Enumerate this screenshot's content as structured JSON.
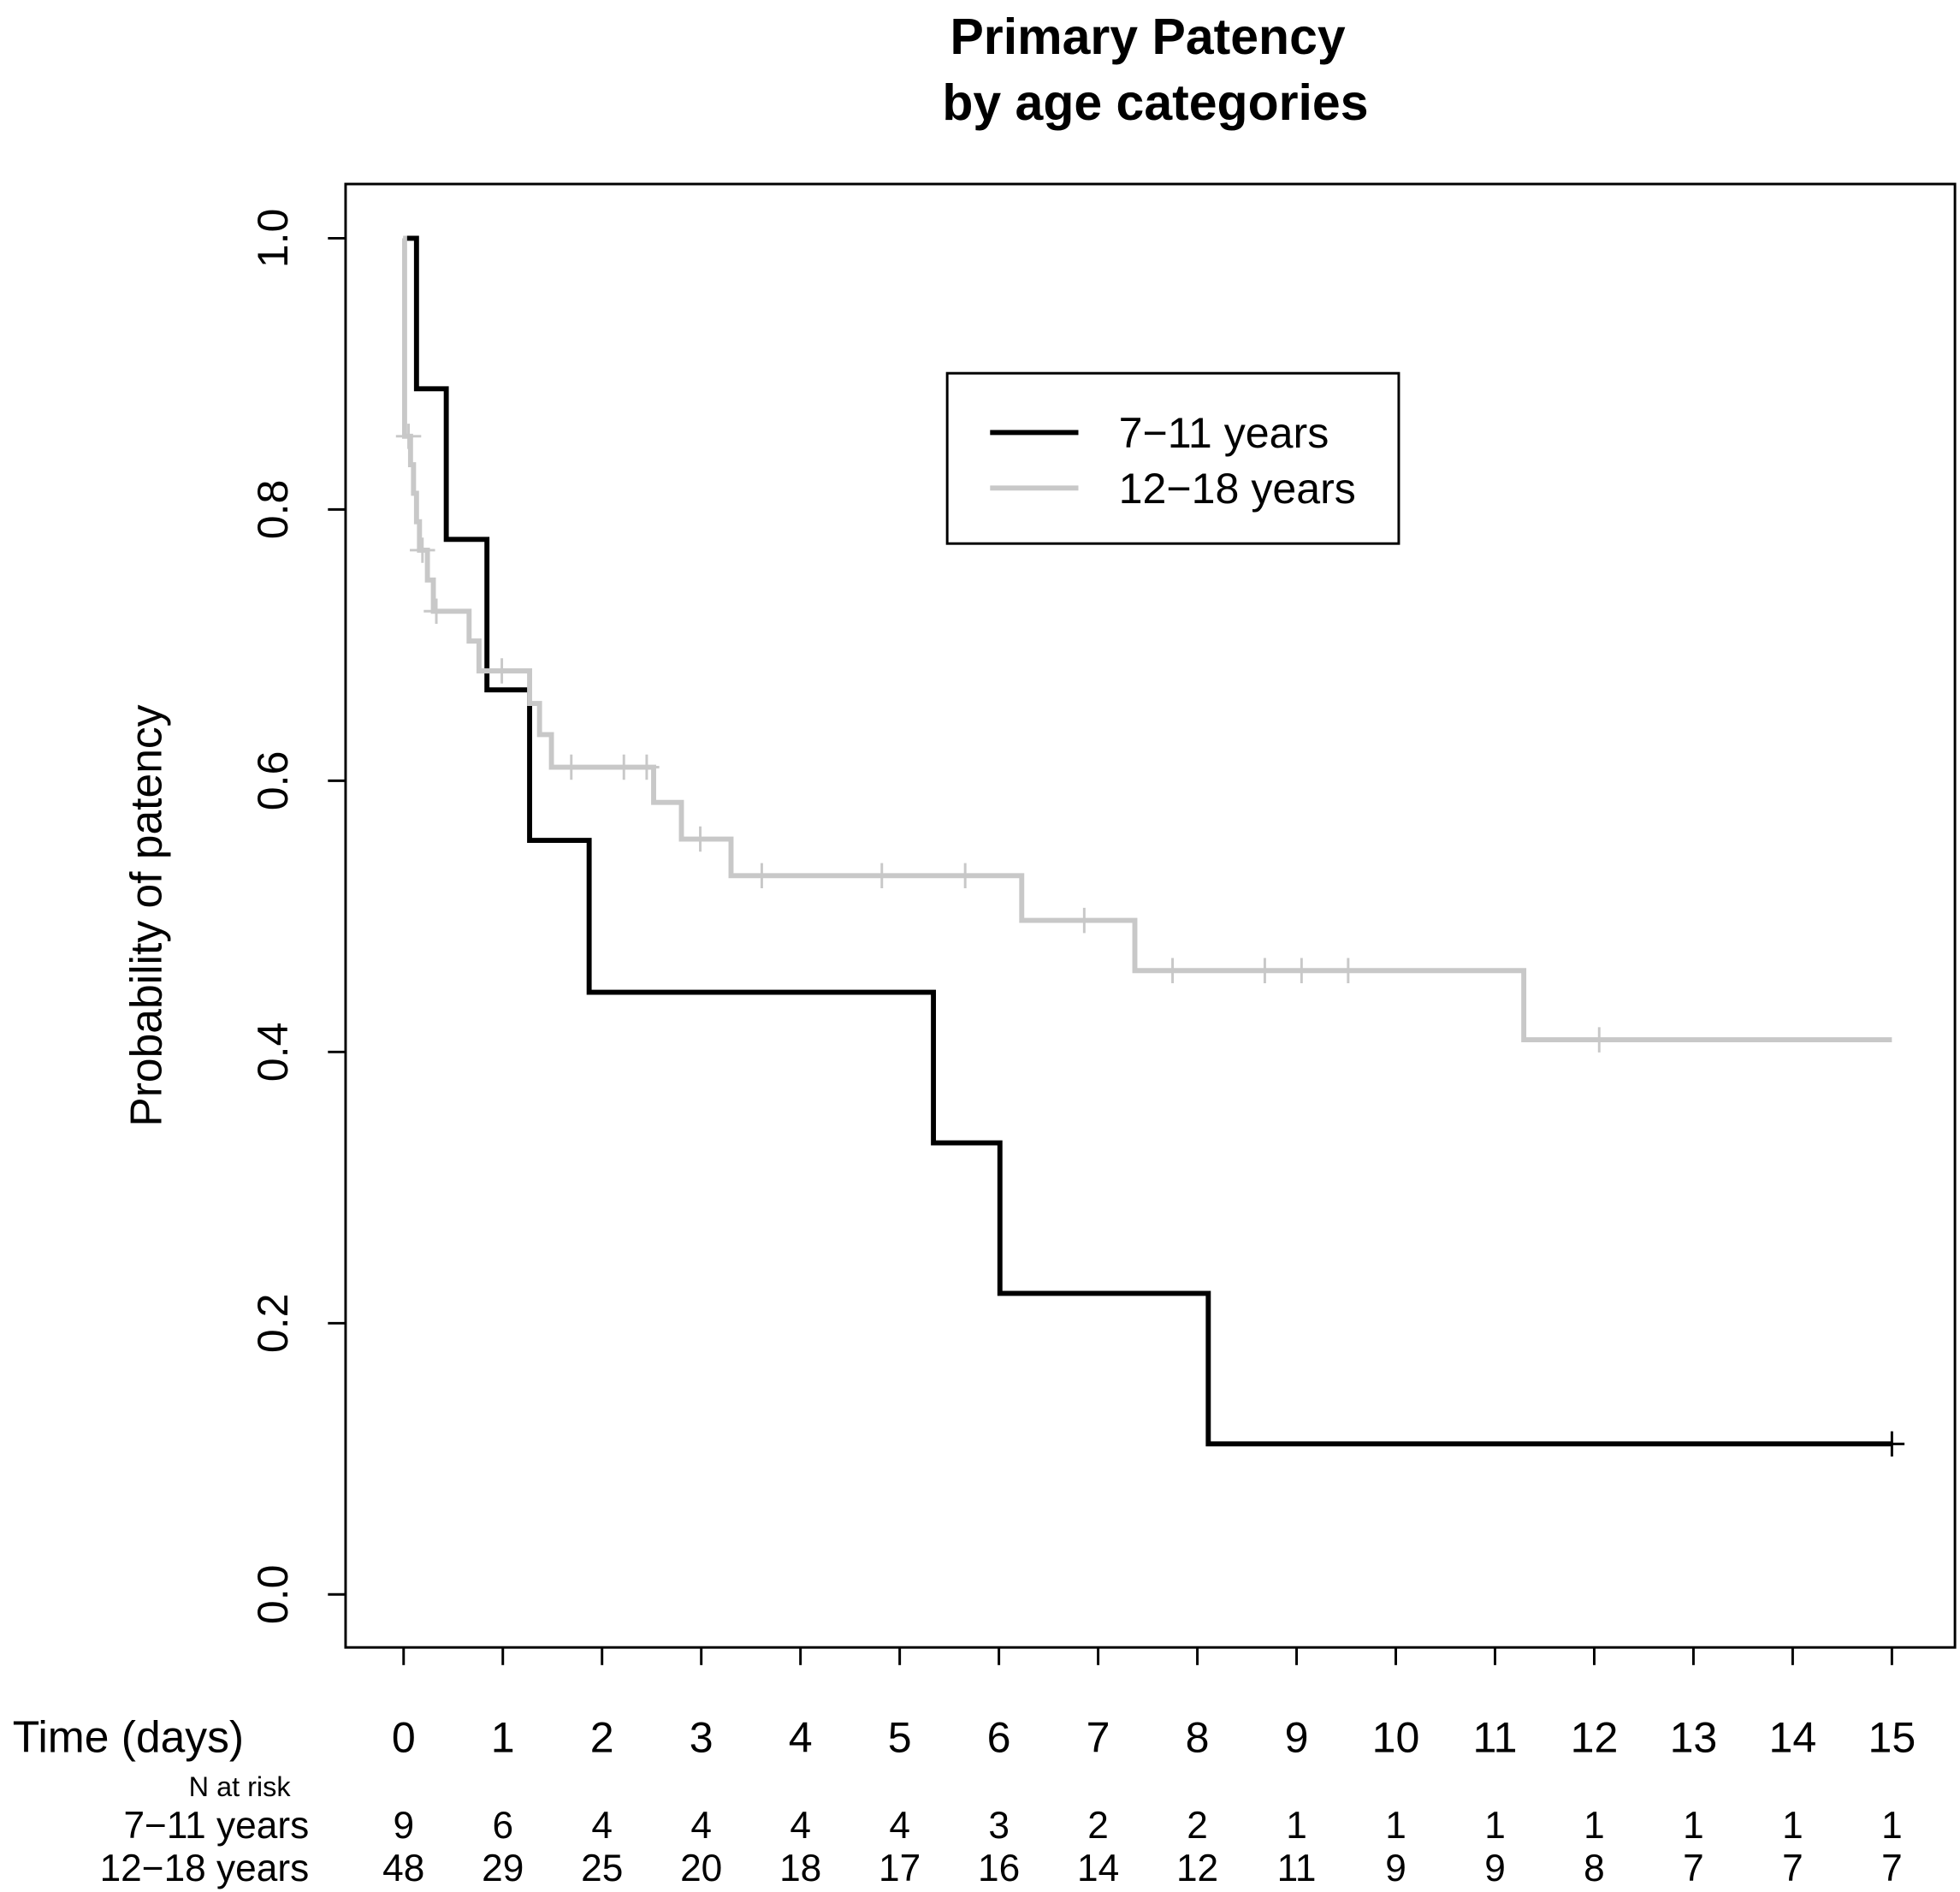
{
  "chart_data": {
    "type": "line",
    "title": "Primary Patency",
    "subtitle": "by age categories",
    "xlabel": "Time (days)",
    "ylabel": "Probability of patency",
    "xlim": [
      0,
      15
    ],
    "ylim": [
      0,
      1
    ],
    "x_ticks": [
      0,
      1,
      2,
      3,
      4,
      5,
      6,
      7,
      8,
      9,
      10,
      11,
      12,
      13,
      14,
      15
    ],
    "y_ticks": [
      0,
      0.2,
      0.4,
      0.6,
      0.8,
      1.0
    ],
    "y_tick_labels": [
      "0.0",
      "0.2",
      "0.4",
      "0.6",
      "0.8",
      "1.0"
    ],
    "legend_position": "top-right",
    "series": [
      {
        "name": "7−11 years",
        "color": "#000000",
        "steps": [
          [
            0,
            1.0
          ],
          [
            0.13,
            0.889
          ],
          [
            0.43,
            0.778
          ],
          [
            0.84,
            0.667
          ],
          [
            1.27,
            0.556
          ],
          [
            1.87,
            0.444
          ],
          [
            5.34,
            0.333
          ],
          [
            6.01,
            0.222
          ],
          [
            8.11,
            0.111
          ]
        ],
        "end": 15,
        "censored": [
          [
            15,
            0.111
          ]
        ]
      },
      {
        "name": "12−18 years",
        "color": "#c8c8c8",
        "steps": [
          [
            0,
            1.0
          ],
          [
            0.01,
            0.854
          ],
          [
            0.07,
            0.833
          ],
          [
            0.1,
            0.812
          ],
          [
            0.13,
            0.791
          ],
          [
            0.16,
            0.77
          ],
          [
            0.24,
            0.748
          ],
          [
            0.3,
            0.725
          ],
          [
            0.66,
            0.703
          ],
          [
            0.76,
            0.681
          ],
          [
            1.27,
            0.657
          ],
          [
            1.37,
            0.634
          ],
          [
            1.49,
            0.61
          ],
          [
            2.52,
            0.584
          ],
          [
            2.8,
            0.557
          ],
          [
            3.3,
            0.53
          ],
          [
            6.23,
            0.497
          ],
          [
            7.37,
            0.46
          ],
          [
            11.29,
            0.409
          ]
        ],
        "end": 15,
        "censored": [
          [
            0.05,
            0.854
          ],
          [
            0.19,
            0.77
          ],
          [
            0.33,
            0.725
          ],
          [
            0.99,
            0.681
          ],
          [
            1.69,
            0.61
          ],
          [
            2.22,
            0.61
          ],
          [
            2.45,
            0.61
          ],
          [
            2.99,
            0.557
          ],
          [
            3.61,
            0.53
          ],
          [
            4.82,
            0.53
          ],
          [
            5.66,
            0.53
          ],
          [
            6.86,
            0.497
          ],
          [
            7.75,
            0.46
          ],
          [
            8.68,
            0.46
          ],
          [
            9.05,
            0.46
          ],
          [
            9.52,
            0.46
          ],
          [
            12.05,
            0.409
          ]
        ]
      }
    ],
    "risk_table": {
      "title": "N at risk",
      "rows": [
        {
          "label": "7−11 years",
          "values": [
            9,
            6,
            4,
            4,
            4,
            4,
            3,
            2,
            2,
            1,
            1,
            1,
            1,
            1,
            1,
            1
          ]
        },
        {
          "label": "12−18 years",
          "values": [
            48,
            29,
            25,
            20,
            18,
            17,
            16,
            14,
            12,
            11,
            9,
            9,
            8,
            7,
            7,
            7
          ]
        }
      ]
    }
  }
}
